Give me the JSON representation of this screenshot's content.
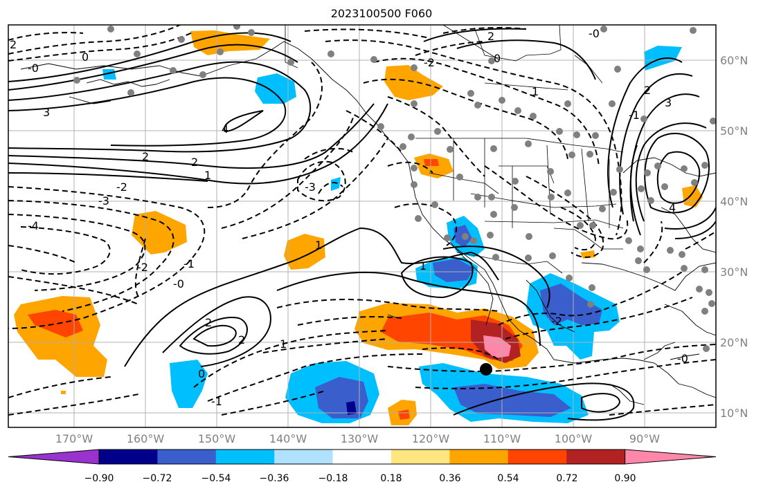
{
  "title": "2023100500 F060",
  "map": {
    "longitude_labels": [
      "170°W",
      "160°W",
      "150°W",
      "140°W",
      "130°W",
      "120°W",
      "110°W",
      "100°W",
      "90°W"
    ],
    "latitude_labels": [
      "60°N",
      "50°N",
      "40°N",
      "30°N",
      "20°N",
      "10°N"
    ],
    "contour_labels": [
      "2",
      "0",
      "-0",
      "3",
      "4",
      "2",
      "2",
      "1",
      "-3",
      "-2",
      "-3",
      "-4",
      "-2",
      "-1",
      "-0",
      "2",
      "2",
      "0",
      "1",
      "-1",
      "1",
      "1",
      "-2",
      "-0",
      "2",
      "-2",
      "0",
      "1",
      "2",
      "3",
      "4",
      "-0",
      "-1"
    ],
    "marker": "black-dot"
  },
  "colorbar": {
    "tick_labels": [
      "−0.90",
      "−0.72",
      "−0.54",
      "−0.36",
      "−0.18",
      "0.18",
      "0.36",
      "0.54",
      "0.72",
      "0.90"
    ],
    "colors": [
      "#9a32cd",
      "#00008b",
      "#3a5fcd",
      "#00bfff",
      "#b0e2ff",
      "#ffffff",
      "#ffe680",
      "#ffa500",
      "#ff4500",
      "#b22222",
      "#ff88aa"
    ]
  }
}
